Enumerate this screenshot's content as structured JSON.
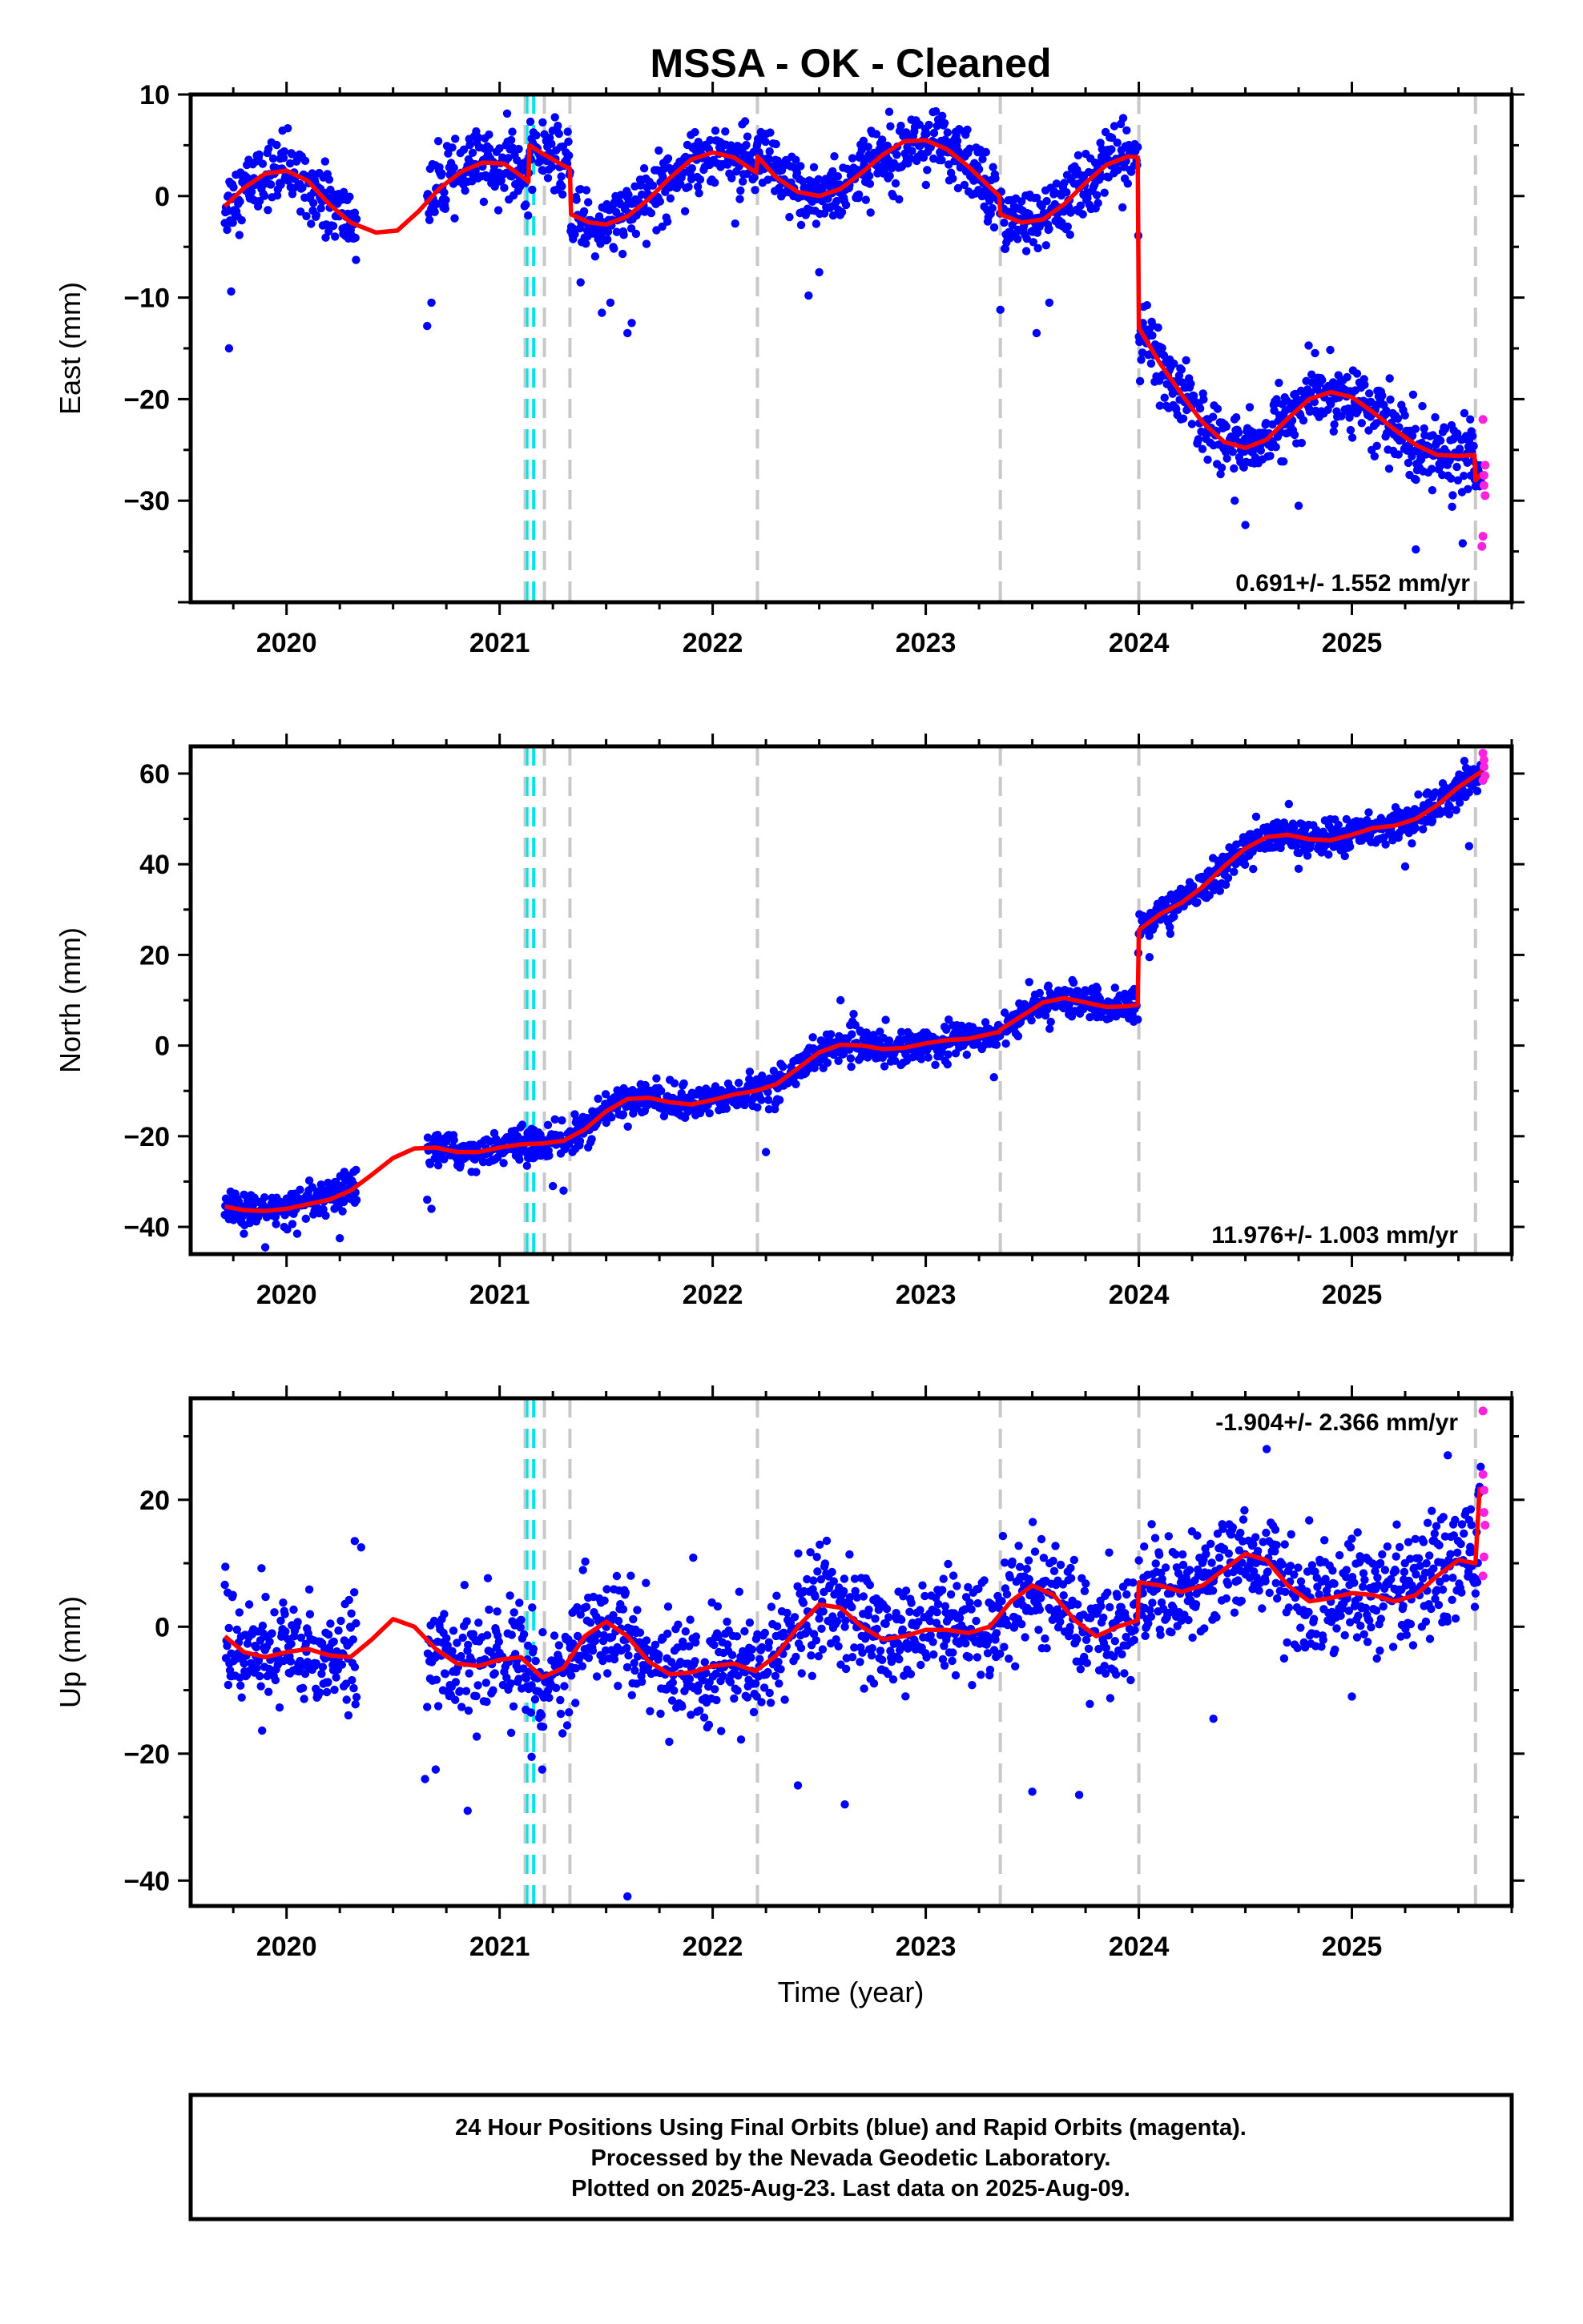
{
  "chart_data": {
    "type": "scatter",
    "title": "MSSA  - OK - Cleaned",
    "xlabel": "Time (year)",
    "xlim": [
      2019.55,
      2025.75
    ],
    "x_ticks": [
      2020,
      2021,
      2022,
      2023,
      2024,
      2025
    ],
    "x_tick_labels": [
      "2020",
      "2021",
      "2022",
      "2023",
      "2024",
      "2025"
    ],
    "colors": {
      "final": "#0000ff",
      "rapid": "#ff22dd",
      "model": "#ff0000",
      "steps_equipment": "#c8c8c8",
      "steps_earthquake": "#00e5e5",
      "frame": "#000000"
    },
    "step_lines": {
      "gray": [
        2021.12,
        2021.21,
        2021.33,
        2022.21,
        2023.35,
        2024.0,
        2025.58
      ],
      "cyan": [
        2021.16
      ]
    },
    "panels": [
      {
        "id": "east",
        "ylabel": "East (mm)",
        "ylim": [
          -40,
          10
        ],
        "y_ticks": [
          -30,
          -20,
          -10,
          0,
          10
        ],
        "y_tick_labels": [
          "−30",
          "−20",
          "−10",
          "0",
          "10"
        ],
        "rate_label": "0.691+/- 1.552 mm/yr",
        "model": [
          [
            2019.71,
            -1.0
          ],
          [
            2019.8,
            0.8
          ],
          [
            2019.9,
            2.2
          ],
          [
            2020.0,
            2.5
          ],
          [
            2020.1,
            1.5
          ],
          [
            2020.2,
            -0.8
          ],
          [
            2020.3,
            -2.6
          ],
          [
            2020.42,
            -3.6
          ],
          [
            2020.52,
            -3.4
          ],
          [
            2020.62,
            -1.5
          ],
          [
            2020.72,
            0.8
          ],
          [
            2020.82,
            2.4
          ],
          [
            2020.92,
            3.3
          ],
          [
            2021.02,
            3.2
          ],
          [
            2021.1,
            2.0
          ],
          [
            2021.135,
            1.4
          ],
          [
            2021.14,
            5.0
          ],
          [
            2021.2,
            4.2
          ],
          [
            2021.3,
            3.0
          ],
          [
            2021.33,
            2.7
          ],
          [
            2021.335,
            -1.8
          ],
          [
            2021.42,
            -2.6
          ],
          [
            2021.5,
            -2.8
          ],
          [
            2021.6,
            -2.0
          ],
          [
            2021.7,
            -0.3
          ],
          [
            2021.8,
            1.8
          ],
          [
            2021.9,
            3.6
          ],
          [
            2022.0,
            4.3
          ],
          [
            2022.1,
            3.8
          ],
          [
            2022.205,
            2.3
          ],
          [
            2022.21,
            3.9
          ],
          [
            2022.3,
            1.8
          ],
          [
            2022.4,
            0.4
          ],
          [
            2022.5,
            0.0
          ],
          [
            2022.6,
            0.7
          ],
          [
            2022.7,
            2.3
          ],
          [
            2022.8,
            4.1
          ],
          [
            2022.9,
            5.4
          ],
          [
            2023.0,
            5.5
          ],
          [
            2023.1,
            4.6
          ],
          [
            2023.2,
            2.9
          ],
          [
            2023.345,
            0.0
          ],
          [
            2023.35,
            -1.8
          ],
          [
            2023.45,
            -2.6
          ],
          [
            2023.55,
            -2.3
          ],
          [
            2023.65,
            -0.8
          ],
          [
            2023.75,
            1.3
          ],
          [
            2023.85,
            3.1
          ],
          [
            2023.95,
            3.9
          ],
          [
            2023.995,
            3.8
          ],
          [
            2024.0,
            -13.0
          ],
          [
            2024.1,
            -16.5
          ],
          [
            2024.2,
            -19.5
          ],
          [
            2024.3,
            -22.3
          ],
          [
            2024.4,
            -24.2
          ],
          [
            2024.5,
            -24.8
          ],
          [
            2024.6,
            -24.0
          ],
          [
            2024.7,
            -21.9
          ],
          [
            2024.8,
            -20.0
          ],
          [
            2024.9,
            -19.3
          ],
          [
            2025.0,
            -19.8
          ],
          [
            2025.1,
            -21.3
          ],
          [
            2025.2,
            -23.0
          ],
          [
            2025.3,
            -24.5
          ],
          [
            2025.4,
            -25.5
          ],
          [
            2025.5,
            -25.6
          ],
          [
            2025.575,
            -25.5
          ],
          [
            2025.58,
            -28.0
          ],
          [
            2025.61,
            -27.3
          ]
        ],
        "rapid": [
          [
            2025.615,
            -22
          ],
          [
            2025.615,
            -33.5
          ],
          [
            2025.62,
            -27.5
          ],
          [
            2025.62,
            -28.5
          ],
          [
            2025.625,
            -26.5
          ],
          [
            2025.625,
            -29.5
          ],
          [
            2025.61,
            -34.5
          ]
        ],
        "noise": 1.6,
        "outliers": [
          [
            2019.73,
            -15
          ],
          [
            2019.74,
            -9.4
          ],
          [
            2020.66,
            -12.8
          ],
          [
            2020.68,
            -10.5
          ],
          [
            2021.38,
            -8.5
          ],
          [
            2021.48,
            -11.5
          ],
          [
            2021.52,
            -10.5
          ],
          [
            2021.6,
            -13.5
          ],
          [
            2021.62,
            -12.5
          ],
          [
            2022.45,
            -9.8
          ],
          [
            2022.5,
            -7.5
          ],
          [
            2023.35,
            -11.2
          ],
          [
            2023.52,
            -13.5
          ],
          [
            2023.58,
            -10.5
          ],
          [
            2024.5,
            -32.4
          ],
          [
            2024.45,
            -30.0
          ],
          [
            2024.75,
            -30.5
          ],
          [
            2025.3,
            -34.8
          ],
          [
            2025.52,
            -34.2
          ]
        ]
      },
      {
        "id": "north",
        "ylabel": "North (mm)",
        "ylim": [
          -46,
          66
        ],
        "y_ticks": [
          -40,
          -20,
          0,
          20,
          40,
          60
        ],
        "y_tick_labels": [
          "−40",
          "−20",
          "0",
          "20",
          "40",
          "60"
        ],
        "rate_label": "11.976+/- 1.003 mm/yr",
        "model": [
          [
            2019.71,
            -35.5
          ],
          [
            2019.8,
            -36.3
          ],
          [
            2019.9,
            -36.5
          ],
          [
            2020.0,
            -36.0
          ],
          [
            2020.1,
            -35.0
          ],
          [
            2020.2,
            -34.0
          ],
          [
            2020.3,
            -32.0
          ],
          [
            2020.4,
            -28.5
          ],
          [
            2020.5,
            -24.8
          ],
          [
            2020.6,
            -22.7
          ],
          [
            2020.7,
            -22.5
          ],
          [
            2020.8,
            -23.5
          ],
          [
            2020.9,
            -23.5
          ],
          [
            2021.0,
            -22.5
          ],
          [
            2021.1,
            -21.8
          ],
          [
            2021.2,
            -21.6
          ],
          [
            2021.3,
            -21.0
          ],
          [
            2021.4,
            -18.5
          ],
          [
            2021.5,
            -14.5
          ],
          [
            2021.6,
            -11.8
          ],
          [
            2021.7,
            -11.5
          ],
          [
            2021.8,
            -12.5
          ],
          [
            2021.9,
            -13.0
          ],
          [
            2022.0,
            -12.0
          ],
          [
            2022.1,
            -10.8
          ],
          [
            2022.2,
            -10.0
          ],
          [
            2022.3,
            -8.5
          ],
          [
            2022.4,
            -5.0
          ],
          [
            2022.5,
            -1.5
          ],
          [
            2022.6,
            0.2
          ],
          [
            2022.7,
            0.0
          ],
          [
            2022.8,
            -0.8
          ],
          [
            2022.9,
            -0.5
          ],
          [
            2023.0,
            0.5
          ],
          [
            2023.1,
            1.2
          ],
          [
            2023.2,
            1.5
          ],
          [
            2023.345,
            3.0
          ],
          [
            2023.35,
            3.5
          ],
          [
            2023.45,
            6.5
          ],
          [
            2023.55,
            9.5
          ],
          [
            2023.65,
            10.5
          ],
          [
            2023.75,
            9.5
          ],
          [
            2023.85,
            8.5
          ],
          [
            2023.95,
            8.7
          ],
          [
            2023.995,
            9.0
          ],
          [
            2024.0,
            25.5
          ],
          [
            2024.1,
            29.0
          ],
          [
            2024.2,
            31.5
          ],
          [
            2024.3,
            35.0
          ],
          [
            2024.4,
            39.5
          ],
          [
            2024.5,
            43.5
          ],
          [
            2024.6,
            46.0
          ],
          [
            2024.7,
            46.5
          ],
          [
            2024.8,
            45.5
          ],
          [
            2024.9,
            45.3
          ],
          [
            2025.0,
            46.5
          ],
          [
            2025.1,
            48.0
          ],
          [
            2025.2,
            48.5
          ],
          [
            2025.3,
            50.0
          ],
          [
            2025.4,
            53.0
          ],
          [
            2025.5,
            57.0
          ],
          [
            2025.61,
            60.5
          ]
        ],
        "rapid": [
          [
            2025.615,
            64.5
          ],
          [
            2025.615,
            58.5
          ],
          [
            2025.62,
            61.5
          ],
          [
            2025.625,
            59.5
          ],
          [
            2025.62,
            63.0
          ]
        ],
        "noise": 1.8,
        "outliers": [
          [
            2019.8,
            -41.5
          ],
          [
            2019.9,
            -44.5
          ],
          [
            2020.05,
            -41.5
          ],
          [
            2020.25,
            -42.5
          ],
          [
            2020.68,
            -36.0
          ],
          [
            2020.66,
            -34.0
          ],
          [
            2021.25,
            -31.0
          ],
          [
            2021.3,
            -32.0
          ],
          [
            2022.25,
            -23.5
          ],
          [
            2022.6,
            10.0
          ],
          [
            2023.32,
            -7.0
          ],
          [
            2024.05,
            19.5
          ],
          [
            2024.75,
            39.0
          ],
          [
            2025.25,
            39.5
          ],
          [
            2025.55,
            44.0
          ]
        ]
      },
      {
        "id": "up",
        "ylabel": "Up (mm)",
        "ylim": [
          -44,
          36
        ],
        "y_ticks": [
          -40,
          -20,
          0,
          20
        ],
        "y_tick_labels": [
          "−40",
          "−20",
          "0",
          "20"
        ],
        "rate_label": "-1.904+/- 2.366 mm/yr",
        "model": [
          [
            2019.71,
            -1.5
          ],
          [
            2019.8,
            -4.0
          ],
          [
            2019.9,
            -4.8
          ],
          [
            2020.0,
            -4.0
          ],
          [
            2020.1,
            -3.5
          ],
          [
            2020.2,
            -4.5
          ],
          [
            2020.3,
            -4.8
          ],
          [
            2020.4,
            -2.0
          ],
          [
            2020.5,
            1.2
          ],
          [
            2020.6,
            0.0
          ],
          [
            2020.7,
            -3.5
          ],
          [
            2020.8,
            -5.8
          ],
          [
            2020.9,
            -6.2
          ],
          [
            2021.0,
            -5.2
          ],
          [
            2021.1,
            -4.8
          ],
          [
            2021.2,
            -8.0
          ],
          [
            2021.3,
            -6.5
          ],
          [
            2021.4,
            -1.5
          ],
          [
            2021.5,
            0.8
          ],
          [
            2021.6,
            -1.5
          ],
          [
            2021.7,
            -5.5
          ],
          [
            2021.8,
            -7.5
          ],
          [
            2021.9,
            -7.2
          ],
          [
            2022.0,
            -6.2
          ],
          [
            2022.1,
            -5.8
          ],
          [
            2022.2,
            -7.0
          ],
          [
            2022.3,
            -4.5
          ],
          [
            2022.4,
            0.0
          ],
          [
            2022.5,
            3.5
          ],
          [
            2022.6,
            3.0
          ],
          [
            2022.7,
            0.0
          ],
          [
            2022.8,
            -2.0
          ],
          [
            2022.9,
            -1.5
          ],
          [
            2023.0,
            -0.5
          ],
          [
            2023.1,
            -0.5
          ],
          [
            2023.2,
            -1.0
          ],
          [
            2023.3,
            0.0
          ],
          [
            2023.4,
            4.0
          ],
          [
            2023.5,
            6.5
          ],
          [
            2023.6,
            5.0
          ],
          [
            2023.7,
            1.0
          ],
          [
            2023.8,
            -1.5
          ],
          [
            2023.9,
            0.0
          ],
          [
            2023.995,
            1.0
          ],
          [
            2024.0,
            7.0
          ],
          [
            2024.1,
            6.5
          ],
          [
            2024.2,
            5.5
          ],
          [
            2024.3,
            6.5
          ],
          [
            2024.4,
            9.0
          ],
          [
            2024.5,
            11.5
          ],
          [
            2024.6,
            10.5
          ],
          [
            2024.7,
            6.5
          ],
          [
            2024.8,
            4.0
          ],
          [
            2024.9,
            4.5
          ],
          [
            2025.0,
            5.3
          ],
          [
            2025.1,
            5.0
          ],
          [
            2025.2,
            4.0
          ],
          [
            2025.3,
            5.0
          ],
          [
            2025.4,
            8.0
          ],
          [
            2025.5,
            10.5
          ],
          [
            2025.58,
            10.0
          ],
          [
            2025.6,
            22.0
          ]
        ],
        "rapid": [
          [
            2025.615,
            34.0
          ],
          [
            2025.615,
            24.0
          ],
          [
            2025.62,
            21.5
          ],
          [
            2025.62,
            18.0
          ],
          [
            2025.625,
            16.0
          ],
          [
            2025.62,
            11.0
          ],
          [
            2025.615,
            8.0
          ]
        ],
        "noise": 4.2,
        "outliers": [
          [
            2020.32,
            13.5
          ],
          [
            2020.35,
            12.5
          ],
          [
            2020.65,
            -24.0
          ],
          [
            2020.7,
            -22.5
          ],
          [
            2020.85,
            -29.0
          ],
          [
            2021.15,
            -20.5
          ],
          [
            2021.2,
            -22.5
          ],
          [
            2021.6,
            -42.5
          ],
          [
            2022.4,
            -25.0
          ],
          [
            2022.62,
            -28.0
          ],
          [
            2023.5,
            -26.0
          ],
          [
            2023.72,
            -26.5
          ],
          [
            2024.35,
            -14.5
          ],
          [
            2024.6,
            28.0
          ],
          [
            2025.0,
            -11.0
          ],
          [
            2025.45,
            27.0
          ]
        ]
      }
    ],
    "data_gaps": [
      [
        2020.33,
        2020.66
      ]
    ]
  },
  "footer": {
    "lines": [
      "24 Hour Positions Using Final Orbits (blue) and Rapid Orbits (magenta).",
      "Processed by the Nevada Geodetic Laboratory.",
      "Plotted on 2025-Aug-23. Last data on 2025-Aug-09."
    ]
  }
}
